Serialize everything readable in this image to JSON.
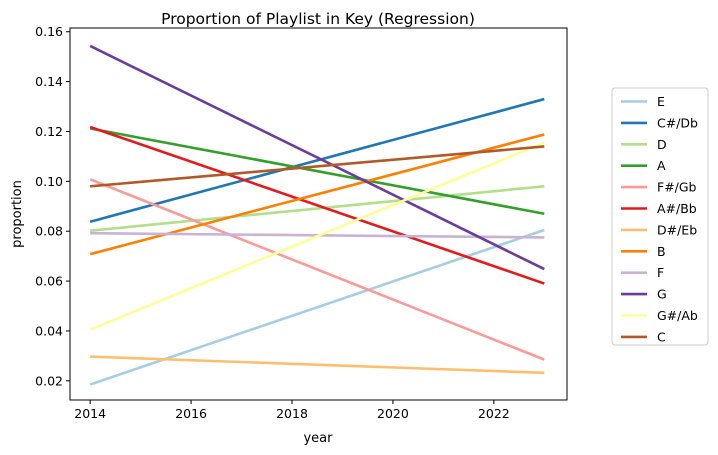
{
  "chart_data": {
    "type": "line",
    "title": "Proportion of Playlist in Key (Regression)",
    "xlabel": "year",
    "ylabel": "proportion",
    "xlim": [
      2013.6,
      2023.45
    ],
    "ylim": [
      0.0123,
      0.1615
    ],
    "xticks": [
      2014,
      2016,
      2018,
      2020,
      2022
    ],
    "yticks": [
      0.02,
      0.04,
      0.06,
      0.08,
      0.1,
      0.12,
      0.14,
      0.16
    ],
    "ytick_labels": [
      "0.02",
      "0.04",
      "0.06",
      "0.08",
      "0.10",
      "0.12",
      "0.14",
      "0.16"
    ],
    "grid": false,
    "legend_position": "right",
    "x": [
      2014,
      2023
    ],
    "series": [
      {
        "name": "E",
        "color": "#a6cee3",
        "values": [
          0.0185,
          0.0805
        ]
      },
      {
        "name": "C#/Db",
        "color": "#1f78b4",
        "values": [
          0.0838,
          0.133
        ]
      },
      {
        "name": "D",
        "color": "#b2df8a",
        "values": [
          0.0802,
          0.098
        ]
      },
      {
        "name": "A",
        "color": "#33a02c",
        "values": [
          0.1212,
          0.087
        ]
      },
      {
        "name": "F#/Gb",
        "color": "#fb9a99",
        "values": [
          0.1008,
          0.0285
        ]
      },
      {
        "name": "A#/Bb",
        "color": "#e31a1c",
        "values": [
          0.1218,
          0.059
        ]
      },
      {
        "name": "D#/Eb",
        "color": "#fdbf6f",
        "values": [
          0.0297,
          0.0232
        ]
      },
      {
        "name": "B",
        "color": "#ff7f00",
        "values": [
          0.0708,
          0.1188
        ]
      },
      {
        "name": "F",
        "color": "#cab2d6",
        "values": [
          0.0792,
          0.0775
        ]
      },
      {
        "name": "G",
        "color": "#6a3d9a",
        "values": [
          0.1543,
          0.0648
        ]
      },
      {
        "name": "G#/Ab",
        "color": "#ffff99",
        "values": [
          0.0405,
          0.1155
        ]
      },
      {
        "name": "C",
        "color": "#b15928",
        "values": [
          0.098,
          0.114
        ]
      }
    ]
  }
}
